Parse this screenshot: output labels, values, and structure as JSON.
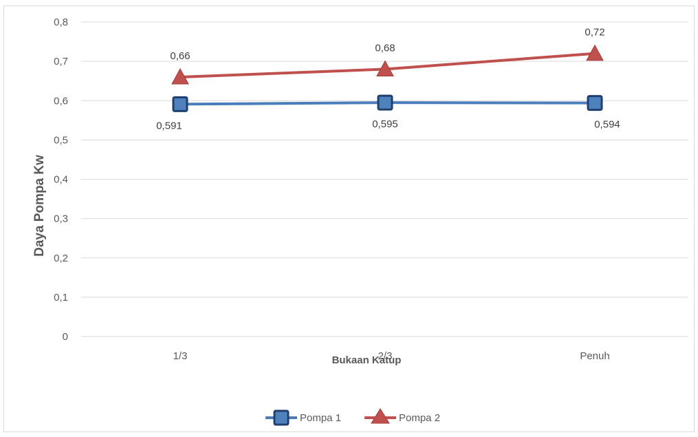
{
  "chart_data": {
    "type": "line",
    "title": "",
    "xlabel": "Bukaan  Katup",
    "ylabel": "Daya Pompa Kw",
    "categories": [
      "1/3",
      "2/3",
      "Penuh"
    ],
    "y_ticks": [
      "0",
      "0,1",
      "0,2",
      "0,3",
      "0,4",
      "0,5",
      "0,6",
      "0,7",
      "0,8"
    ],
    "ylim": [
      0,
      0.8
    ],
    "grid": true,
    "legend_position": "bottom",
    "series": [
      {
        "name": "Pompa 1",
        "values": [
          0.591,
          0.595,
          0.594
        ],
        "labels": [
          "0,591",
          "0,595",
          "0,594"
        ],
        "label_position": "below",
        "color": "#4a7ebb",
        "marker": "square",
        "marker_fill": "#4f81bd",
        "marker_stroke": "#1f3f6e"
      },
      {
        "name": "Pompa 2",
        "values": [
          0.66,
          0.68,
          0.72
        ],
        "labels": [
          "0,66",
          "0,68",
          "0,72"
        ],
        "label_position": "above",
        "color": "#c0504d",
        "marker": "triangle",
        "marker_fill": "#c0504d",
        "marker_stroke": "#a33b38"
      }
    ]
  }
}
